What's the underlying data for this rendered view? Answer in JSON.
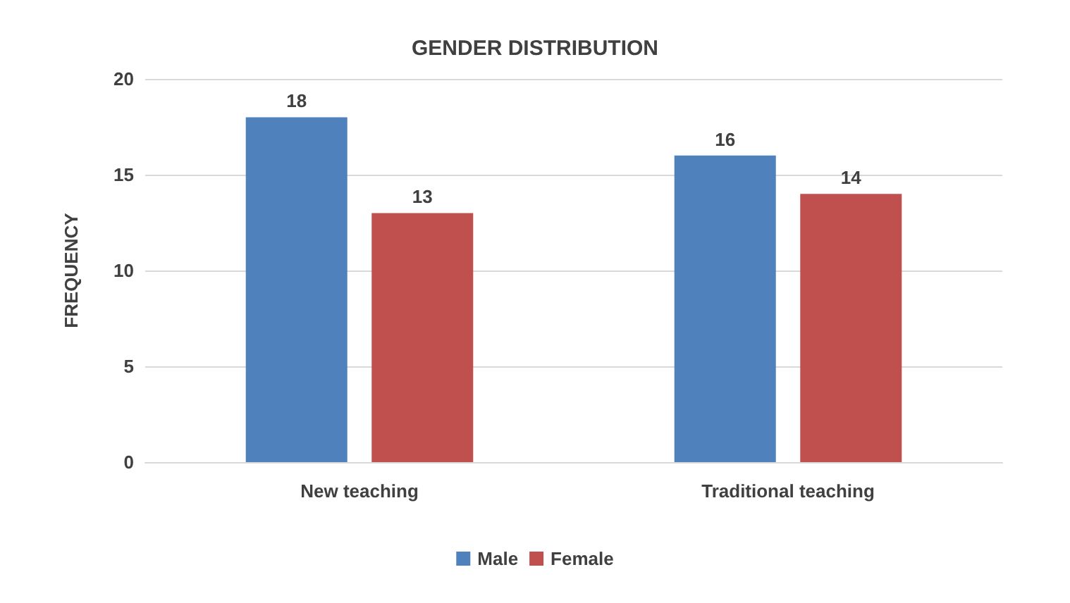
{
  "chart_data": {
    "type": "bar",
    "title": "GENDER DISTRIBUTION",
    "ylabel": "FREQUENCY",
    "categories": [
      "New teaching",
      "Traditional teaching"
    ],
    "series": [
      {
        "name": "Male",
        "color": "#4f81bd",
        "values": [
          18,
          16
        ]
      },
      {
        "name": "Female",
        "color": "#c0504d",
        "values": [
          13,
          14
        ]
      }
    ],
    "ylim": [
      0,
      20
    ],
    "yticks": [
      0,
      5,
      10,
      15,
      20
    ],
    "grid": "y",
    "legend": "bottom",
    "data_labels": true
  }
}
